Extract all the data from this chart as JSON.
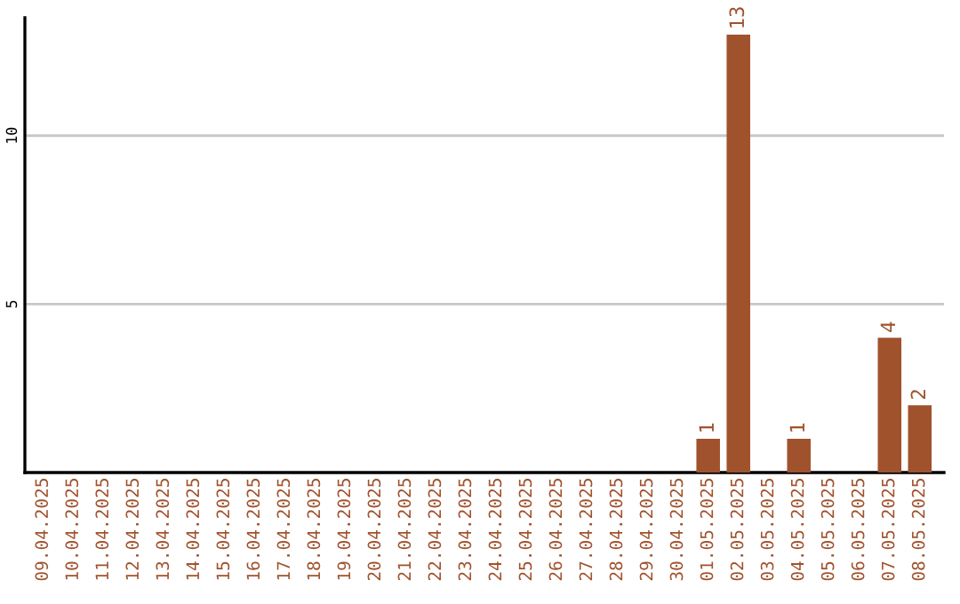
{
  "chart_data": {
    "type": "bar",
    "categories": [
      "09.04.2025",
      "10.04.2025",
      "11.04.2025",
      "12.04.2025",
      "13.04.2025",
      "14.04.2025",
      "15.04.2025",
      "16.04.2025",
      "17.04.2025",
      "18.04.2025",
      "19.04.2025",
      "20.04.2025",
      "21.04.2025",
      "22.04.2025",
      "23.04.2025",
      "24.04.2025",
      "25.04.2025",
      "26.04.2025",
      "27.04.2025",
      "28.04.2025",
      "29.04.2025",
      "30.04.2025",
      "01.05.2025",
      "02.05.2025",
      "03.05.2025",
      "04.05.2025",
      "05.05.2025",
      "06.05.2025",
      "07.05.2025",
      "08.05.2025"
    ],
    "values": [
      0,
      0,
      0,
      0,
      0,
      0,
      0,
      0,
      0,
      0,
      0,
      0,
      0,
      0,
      0,
      0,
      0,
      0,
      0,
      0,
      0,
      0,
      1,
      13,
      0,
      1,
      0,
      0,
      4,
      2
    ],
    "value_labels": [
      null,
      null,
      null,
      null,
      null,
      null,
      null,
      null,
      null,
      null,
      null,
      null,
      null,
      null,
      null,
      null,
      null,
      null,
      null,
      null,
      null,
      null,
      "1",
      "13",
      null,
      "1",
      null,
      null,
      "4",
      "2"
    ],
    "color": "#a0522d",
    "ylim": [
      0,
      13.5
    ],
    "yticks": [
      5,
      10
    ],
    "grid": "y"
  }
}
